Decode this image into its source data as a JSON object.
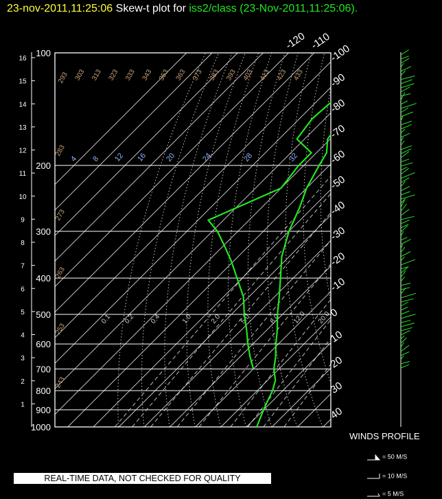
{
  "header": {
    "timestamp": "23-nov-2011,11:25:06",
    "plot_label": "Skew-t plot for",
    "station": "iss2/class",
    "paren": "(23-Nov-2011,11:25:06)."
  },
  "banner": "REAL-TIME DATA, NOT CHECKED FOR QUALITY",
  "winds": {
    "title": "WINDS PROFILE",
    "legend": [
      "= 50 M/S",
      "= 10 M/S",
      "= 5 M/S"
    ]
  },
  "colors": {
    "trace": "#22e622",
    "title_time": "#ffff3c",
    "mixing_ratio_labels": "#8fb5ff",
    "theta_labels": "#c9a27a"
  },
  "chart_data": {
    "type": "line",
    "pressure_levels": [
      100,
      200,
      300,
      400,
      500,
      600,
      700,
      800,
      900,
      1000
    ],
    "height_km_labels": [
      1,
      2,
      3,
      4,
      5,
      6,
      7,
      8,
      9,
      10,
      11,
      12,
      13,
      14,
      15,
      16
    ],
    "temperature_tick_labels": [
      "-120",
      "-110",
      "-100",
      "-90",
      "-80",
      "-70",
      "-60",
      "-50",
      "-40",
      "-30",
      "-20",
      "-10",
      "0",
      "10",
      "20",
      "30",
      "40"
    ],
    "potential_temperature_labels": [
      "293",
      "303",
      "313",
      "323",
      "333",
      "343",
      "353",
      "363",
      "373",
      "383",
      "393",
      "403",
      "413",
      "423",
      "433",
      "283",
      "273",
      "263",
      "253",
      "243"
    ],
    "mixing_ratio_labels_upper": [
      "4",
      "8",
      "12",
      "16",
      "20",
      "24",
      "28",
      "32"
    ],
    "mixing_ratio_labels_lower": [
      "0.1",
      "0.2",
      "0.4",
      "1.0",
      "2.0",
      "5.0",
      "8.0",
      "12.0",
      "20.0"
    ],
    "series": [
      {
        "points": [
          [
            100,
            -70
          ],
          [
            120,
            -70
          ],
          [
            150,
            -73
          ],
          [
            170,
            -71
          ],
          [
            185,
            -66
          ],
          [
            200,
            -64
          ],
          [
            230,
            -60
          ],
          [
            260,
            -55
          ],
          [
            300,
            -50
          ],
          [
            350,
            -43
          ],
          [
            400,
            -35
          ],
          [
            450,
            -28
          ],
          [
            500,
            -22
          ],
          [
            550,
            -16
          ],
          [
            600,
            -11
          ],
          [
            650,
            -6
          ],
          [
            700,
            -2
          ],
          [
            750,
            3
          ],
          [
            800,
            6
          ],
          [
            850,
            8
          ],
          [
            900,
            10
          ],
          [
            950,
            12
          ],
          [
            1000,
            14
          ]
        ]
      },
      {
        "points": [
          [
            100,
            -82
          ],
          [
            120,
            -83
          ],
          [
            150,
            -85
          ],
          [
            170,
            -83
          ],
          [
            185,
            -72
          ],
          [
            200,
            -72
          ],
          [
            230,
            -70
          ],
          [
            260,
            -80
          ],
          [
            280,
            -86
          ],
          [
            300,
            -78
          ],
          [
            330,
            -69
          ],
          [
            360,
            -61
          ],
          [
            400,
            -52
          ],
          [
            450,
            -42
          ],
          [
            500,
            -35
          ],
          [
            550,
            -28
          ],
          [
            600,
            -22
          ],
          [
            650,
            -16
          ],
          [
            700,
            -10
          ]
        ]
      }
    ]
  }
}
